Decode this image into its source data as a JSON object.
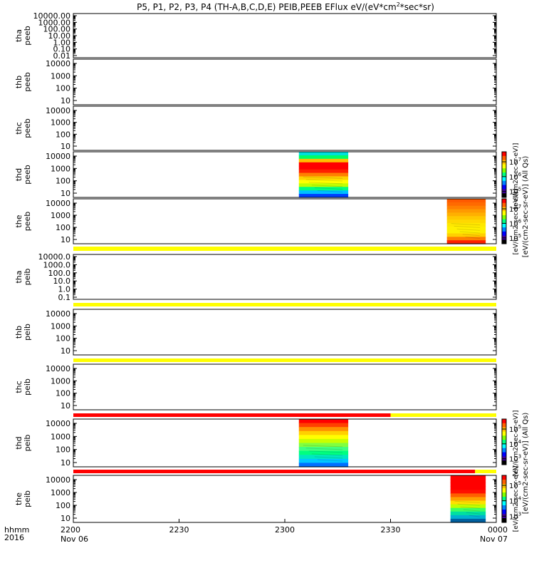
{
  "title": "P5, P1, P2, P3, P4 (TH-A,B,C,D,E) PEIB,PEEB EFlux eV/(eV*cm",
  "title_sup": "2",
  "title_tail": "*sec*sr)",
  "colors": {
    "yellow_bar": "#ffff00",
    "red_bar": "#ff0000",
    "dark_segment": "#000000"
  },
  "chart_data": {
    "type": "heatmap",
    "x_axis": {
      "ticks": [
        {
          "main": "2200",
          "sub": "Nov 06"
        },
        {
          "main": "2230",
          "sub": ""
        },
        {
          "main": "2300",
          "sub": ""
        },
        {
          "main": "2330",
          "sub": ""
        },
        {
          "main": "0000",
          "sub": "Nov 07"
        }
      ],
      "corner_label": "hhmm",
      "corner_year": "2016",
      "range_minutes": [
        0,
        120
      ]
    },
    "panels": [
      {
        "probe": "tha",
        "product": "peeb",
        "yticks": [
          "10000.00",
          "1000.00",
          "100.00",
          "10.00",
          "1.00",
          "0.10",
          "0.01"
        ],
        "scale": "log",
        "data": null
      },
      {
        "probe": "thb",
        "product": "peeb",
        "yticks": [
          "10000",
          "1000",
          "100",
          "10"
        ],
        "scale": "log",
        "data": null
      },
      {
        "probe": "thc",
        "product": "peeb",
        "yticks": [
          "10000",
          "1000",
          "100",
          "10"
        ],
        "scale": "log",
        "data": null
      },
      {
        "probe": "thd",
        "product": "peeb",
        "yticks": [
          "10000",
          "1000",
          "100",
          "10"
        ],
        "scale": "log",
        "data": {
          "start_min": 64,
          "end_min": 78,
          "rows_top_to_bottom": [
            "#00e0e0",
            "#00ff66",
            "#ffc000",
            "#ff0000",
            "#ff0000",
            "#ff2000",
            "#ff8000",
            "#ffd000",
            "#ffff00",
            "#c0ff00",
            "#00ff80",
            "#00c0ff",
            "#0040ff"
          ]
        }
      },
      {
        "probe": "the",
        "product": "peeb",
        "yticks": [
          "10000",
          "1000",
          "100",
          "10"
        ],
        "scale": "log",
        "data": {
          "start_min": 106,
          "end_min": 117,
          "rows_top_to_bottom": [
            "#ff5a00",
            "#ff6a00",
            "#ff8000",
            "#ff9a00",
            "#ffb000",
            "#ffc800",
            "#ffd800",
            "#ffe800",
            "#fff000",
            "#fff000",
            "#ffd000",
            "#ff8000",
            "#ff2000"
          ]
        }
      },
      {
        "probe": "tha",
        "product": "peib",
        "yticks": [
          "10000.0",
          "1000.0",
          "100.0",
          "10.0",
          "1.0",
          "0.1"
        ],
        "scale": "log",
        "data": null
      },
      {
        "probe": "thb",
        "product": "peib",
        "yticks": [
          "10000",
          "1000",
          "100",
          "10"
        ],
        "scale": "log",
        "data": null
      },
      {
        "probe": "thc",
        "product": "peib",
        "yticks": [
          "10000",
          "1000",
          "100",
          "10"
        ],
        "scale": "log",
        "data": null
      },
      {
        "probe": "thd",
        "product": "peib",
        "yticks": [
          "10000",
          "1000",
          "100",
          "10"
        ],
        "scale": "log",
        "data": {
          "start_min": 64,
          "end_min": 78,
          "rows_top_to_bottom": [
            "#ff0000",
            "#ff4000",
            "#ff9000",
            "#ffd000",
            "#ffff00",
            "#c8ff00",
            "#80ff40",
            "#40ff80",
            "#00ff80",
            "#00e8c0",
            "#00c8ff",
            "#0070ff"
          ]
        }
      },
      {
        "probe": "the",
        "product": "peib",
        "yticks": [
          "10000",
          "1000",
          "100",
          "10"
        ],
        "scale": "log",
        "data": {
          "start_min": 107,
          "end_min": 117,
          "rows_top_to_bottom": [
            "#ff0000",
            "#ff0000",
            "#ff0000",
            "#ff0000",
            "#ff1000",
            "#ff6000",
            "#ffa000",
            "#ffe000",
            "#c0ff00",
            "#40ff60",
            "#00e0a0",
            "#00b0d0",
            "#0060a0"
          ]
        }
      }
    ],
    "status_bars": [
      {
        "after_panel": 4,
        "segments": [
          {
            "start_min": 0,
            "end_min": 120,
            "color": "yellow_bar"
          }
        ]
      },
      {
        "after_panel": 5,
        "segments": [
          {
            "start_min": 0,
            "end_min": 120,
            "color": "yellow_bar"
          }
        ]
      },
      {
        "after_panel": 6,
        "segments": [
          {
            "start_min": 0,
            "end_min": 120,
            "color": "yellow_bar"
          }
        ]
      },
      {
        "after_panel": 7,
        "segments": [
          {
            "start_min": 0,
            "end_min": 90,
            "color": "red_bar"
          },
          {
            "start_min": 90,
            "end_min": 120,
            "color": "yellow_bar"
          }
        ]
      },
      {
        "after_panel": 8,
        "segments": [
          {
            "start_min": 0,
            "end_min": 114,
            "color": "red_bar"
          },
          {
            "start_min": 114,
            "end_min": 120,
            "color": "yellow_bar"
          }
        ]
      }
    ],
    "colorbars": [
      {
        "panel": 3,
        "labels": [
          "10",
          "10",
          "10"
        ],
        "exponents": [
          "7",
          "6",
          "5"
        ]
      },
      {
        "panel": 4,
        "labels": [
          "10",
          "10",
          "10"
        ],
        "exponents": [
          "7",
          "6",
          "5"
        ]
      },
      {
        "panel": 8,
        "labels": [
          "10",
          "10",
          "10"
        ],
        "exponents": [
          "5",
          "4",
          "3"
        ]
      },
      {
        "panel": 9,
        "labels": [
          "10",
          "10",
          "10"
        ],
        "exponents": [
          "5",
          "4",
          "3"
        ]
      }
    ],
    "colorbar_titles": [
      "[eV/(cm2-sec-sr-eV)] (All Qs)",
      "[eV/(cm2-sec-sr-eV)] (All Qs)"
    ],
    "colorbar_titles_over": [
      "[eV/(cm2-sec-sr-eV)]",
      "[eV/(cm2-sec-sr-eV)]",
      "[eV/(cm2-sec-sr-eV)]",
      "[eV/(cm2-sec-sr-eV)]"
    ]
  }
}
